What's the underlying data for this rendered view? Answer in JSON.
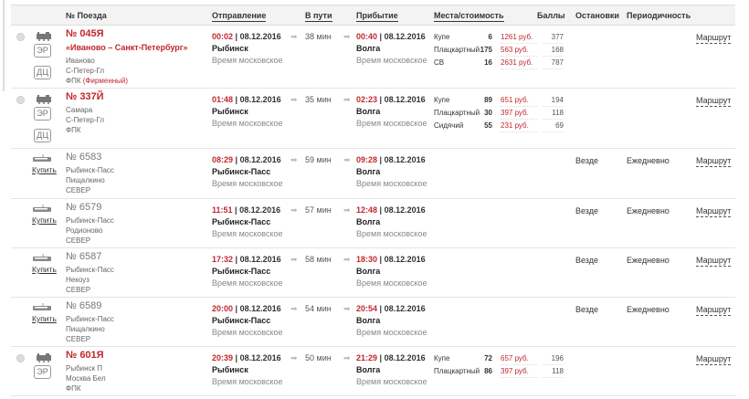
{
  "header": {
    "train": "№ Поезда",
    "departure": "Отправление",
    "duration": "В пути",
    "arrival": "Прибытие",
    "seats": "Места/стоимость",
    "points": "Баллы",
    "stops": "Остановки",
    "periodicity": "Периодичность"
  },
  "colors": {
    "accent": "#c0272d",
    "header_bg": "#f3f3f3"
  },
  "labels": {
    "timezone": "Время московское",
    "route": "Маршрут",
    "buy": "Купить",
    "badge_er": "ЭР",
    "badge_dc": "ДЦ"
  },
  "rows": [
    {
      "kind": "long",
      "number": "№ 045Я",
      "name": "«Иваново – Санкт-Петербург»",
      "from": "Иваново",
      "to": "С-Петер-Гл",
      "carrier": "ФПК",
      "brand": "(Фирменный)",
      "badges": [
        "ЭР",
        "ДЦ"
      ],
      "dep_time": "00:02",
      "dep_date": "| 08.12.2016",
      "dep_station": "Рыбинск",
      "duration": "38 мин",
      "arr_time": "00:40",
      "arr_date": "| 08.12.2016",
      "arr_station": "Волга",
      "seats": [
        {
          "class": "Купе",
          "count": "6",
          "price": "1261 руб.",
          "points": "377"
        },
        {
          "class": "Плацкартный",
          "count": "175",
          "price": "563 руб.",
          "points": "168"
        },
        {
          "class": "СВ",
          "count": "16",
          "price": "2631 руб.",
          "points": "787"
        }
      ]
    },
    {
      "kind": "long",
      "number": "№ 337Й",
      "from": "Самара",
      "to": "С-Петер-Гл",
      "carrier": "ФПК",
      "badges": [
        "ЭР",
        "ДЦ"
      ],
      "dep_time": "01:48",
      "dep_date": "| 08.12.2016",
      "dep_station": "Рыбинск",
      "duration": "35 мин",
      "arr_time": "02:23",
      "arr_date": "| 08.12.2016",
      "arr_station": "Волга",
      "seats": [
        {
          "class": "Купе",
          "count": "89",
          "price": "651 руб.",
          "points": "194"
        },
        {
          "class": "Плацкартный",
          "count": "30",
          "price": "397 руб.",
          "points": "118"
        },
        {
          "class": "Сидячий",
          "count": "55",
          "price": "231 руб.",
          "points": "69"
        }
      ]
    },
    {
      "kind": "suburban",
      "number": "№ 6583",
      "from": "Рыбинск-Пасс",
      "to": "Пищалкино",
      "carrier": "СЕВЕР",
      "dep_time": "08:29",
      "dep_date": "| 08.12.2016",
      "dep_station": "Рыбинск-Пасс",
      "duration": "59 мин",
      "arr_time": "09:28",
      "arr_date": "| 08.12.2016",
      "arr_station": "Волга",
      "stops": "Везде",
      "periodicity": "Ежедневно"
    },
    {
      "kind": "suburban",
      "number": "№ 6579",
      "from": "Рыбинск-Пасс",
      "to": "Родионово",
      "carrier": "СЕВЕР",
      "dep_time": "11:51",
      "dep_date": "| 08.12.2016",
      "dep_station": "Рыбинск-Пасс",
      "duration": "57 мин",
      "arr_time": "12:48",
      "arr_date": "| 08.12.2016",
      "arr_station": "Волга",
      "stops": "Везде",
      "periodicity": "Ежедневно"
    },
    {
      "kind": "suburban",
      "number": "№ 6587",
      "from": "Рыбинск-Пасс",
      "to": "Некоуз",
      "carrier": "СЕВЕР",
      "dep_time": "17:32",
      "dep_date": "| 08.12.2016",
      "dep_station": "Рыбинск-Пасс",
      "duration": "58 мин",
      "arr_time": "18:30",
      "arr_date": "| 08.12.2016",
      "arr_station": "Волга",
      "stops": "Везде",
      "periodicity": "Ежедневно"
    },
    {
      "kind": "suburban",
      "number": "№ 6589",
      "from": "Рыбинск-Пасс",
      "to": "Пищалкино",
      "carrier": "СЕВЕР",
      "dep_time": "20:00",
      "dep_date": "| 08.12.2016",
      "dep_station": "Рыбинск-Пасс",
      "duration": "54 мин",
      "arr_time": "20:54",
      "arr_date": "| 08.12.2016",
      "arr_station": "Волга",
      "stops": "Везде",
      "periodicity": "Ежедневно"
    },
    {
      "kind": "long",
      "number": "№ 601Я",
      "from": "Рыбинск П",
      "to": "Москва Бел",
      "carrier": "ФПК",
      "badges": [
        "ЭР"
      ],
      "dep_time": "20:39",
      "dep_date": "| 08.12.2016",
      "dep_station": "Рыбинск",
      "duration": "50 мин",
      "arr_time": "21:29",
      "arr_date": "| 08.12.2016",
      "arr_station": "Волга",
      "seats": [
        {
          "class": "Купе",
          "count": "72",
          "price": "657 руб.",
          "points": "196"
        },
        {
          "class": "Плацкартный",
          "count": "86",
          "price": "397 руб.",
          "points": "118"
        }
      ]
    }
  ]
}
